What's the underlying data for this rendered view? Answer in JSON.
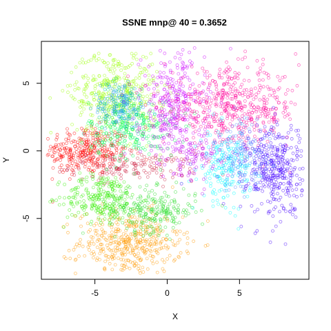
{
  "chart_data": {
    "type": "scatter",
    "title": "SSNE mnp@ 40 = 0.3652",
    "xlabel": "X",
    "ylabel": "Y",
    "xlim": [
      -8.7,
      9.8
    ],
    "ylim": [
      -9.5,
      8.1
    ],
    "x_ticks": [
      -5,
      0,
      5
    ],
    "y_ticks": [
      -5,
      0,
      5
    ],
    "x_tick_labels": [
      "-5",
      "0",
      "5"
    ],
    "y_tick_labels": [
      "-5",
      "0",
      "5"
    ],
    "marker": "open-circle",
    "clusters": [
      {
        "color": "#FF0000",
        "cx": -5.6,
        "cy": 0.0,
        "sx": 1.5,
        "sy": 0.9,
        "n": 330
      },
      {
        "color": "#CC2244",
        "cx": -2.3,
        "cy": -1.2,
        "sx": 2.2,
        "sy": 0.5,
        "n": 160
      },
      {
        "color": "#FF9900",
        "cx": -2.6,
        "cy": -6.8,
        "sx": 1.8,
        "sy": 1.2,
        "n": 430
      },
      {
        "color": "#33EE00",
        "cx": -4.5,
        "cy": -3.5,
        "sx": 1.3,
        "sy": 0.9,
        "n": 260
      },
      {
        "color": "#22DD22",
        "cx": -1.0,
        "cy": -4.4,
        "sx": 1.5,
        "sy": 0.8,
        "n": 230
      },
      {
        "color": "#99FF00",
        "cx": -3.6,
        "cy": 4.3,
        "sx": 1.5,
        "sy": 1.6,
        "n": 420
      },
      {
        "color": "#00FF55",
        "cx": -2.4,
        "cy": 1.5,
        "sx": 1.5,
        "sy": 1.1,
        "n": 230
      },
      {
        "color": "#00CC99",
        "cx": -3.1,
        "cy": 3.0,
        "sx": 1.0,
        "sy": 1.0,
        "n": 120
      },
      {
        "color": "#2299FF",
        "cx": -3.2,
        "cy": 3.5,
        "sx": 0.9,
        "sy": 0.9,
        "n": 110
      },
      {
        "color": "#CC00FF",
        "cx": 0.4,
        "cy": 3.2,
        "sx": 1.1,
        "sy": 2.0,
        "n": 330
      },
      {
        "color": "#FF0099",
        "cx": 4.5,
        "cy": 3.2,
        "sx": 2.4,
        "sy": 1.4,
        "n": 520
      },
      {
        "color": "#00FFFF",
        "cx": 4.0,
        "cy": -1.2,
        "sx": 0.9,
        "sy": 1.3,
        "n": 200
      },
      {
        "color": "#4400FF",
        "cx": 7.5,
        "cy": -1.4,
        "sx": 1.0,
        "sy": 1.7,
        "n": 380
      },
      {
        "color": "#5588FF",
        "cx": 5.3,
        "cy": -0.4,
        "sx": 1.0,
        "sy": 1.3,
        "n": 150
      },
      {
        "color": "#BB00EE",
        "cx": 1.9,
        "cy": -0.6,
        "sx": 0.9,
        "sy": 0.9,
        "n": 90
      }
    ],
    "grid": false,
    "legend": "none"
  }
}
